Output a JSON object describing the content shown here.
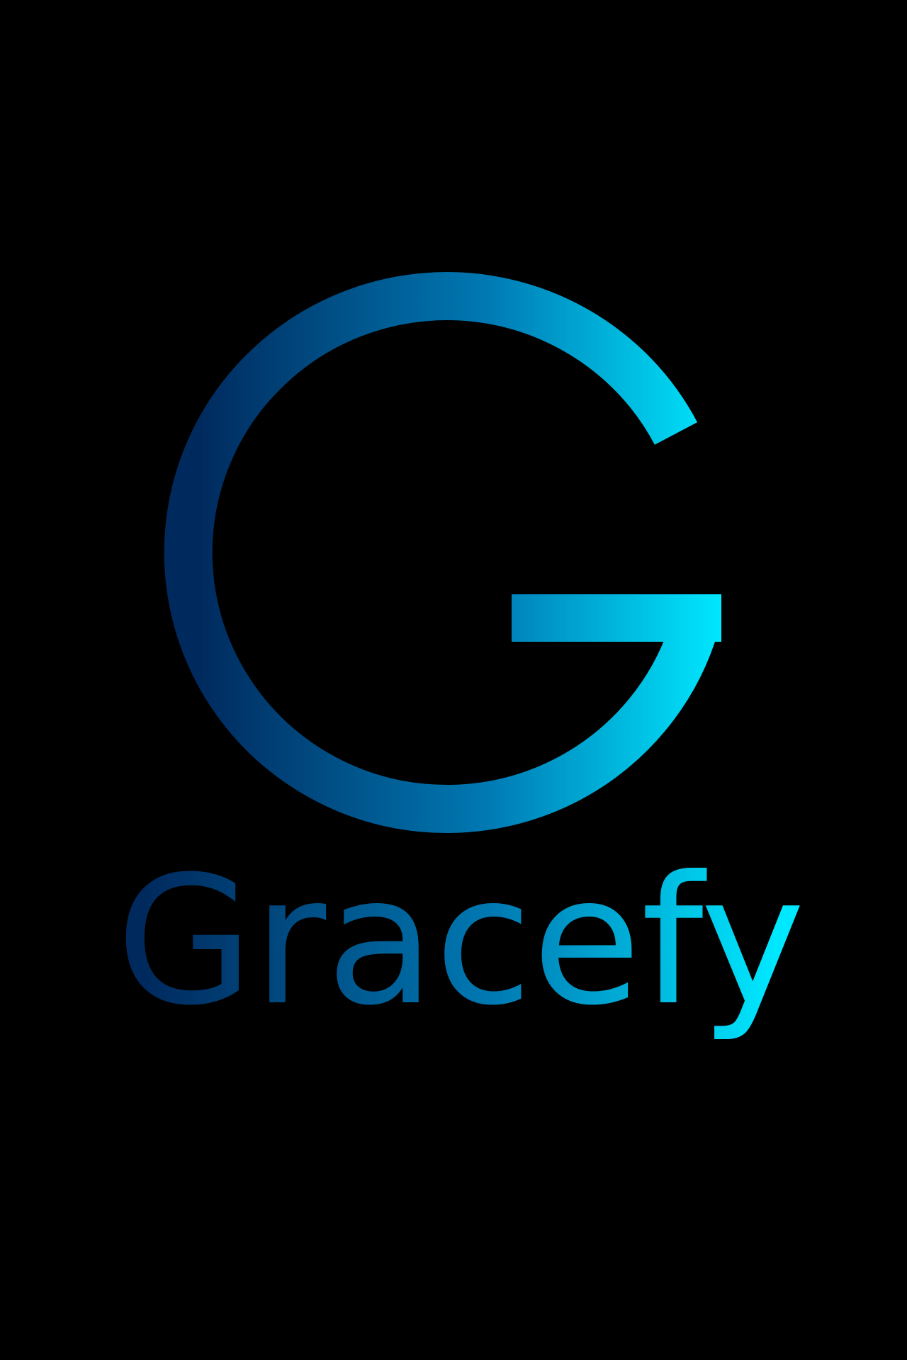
{
  "brand": {
    "name": "Gracefy",
    "icon": "letter-g-logo-icon"
  },
  "colors": {
    "background": "#000000",
    "gradient_start": "#002a5e",
    "gradient_mid": "#0079b3",
    "gradient_end": "#00e8ff"
  }
}
